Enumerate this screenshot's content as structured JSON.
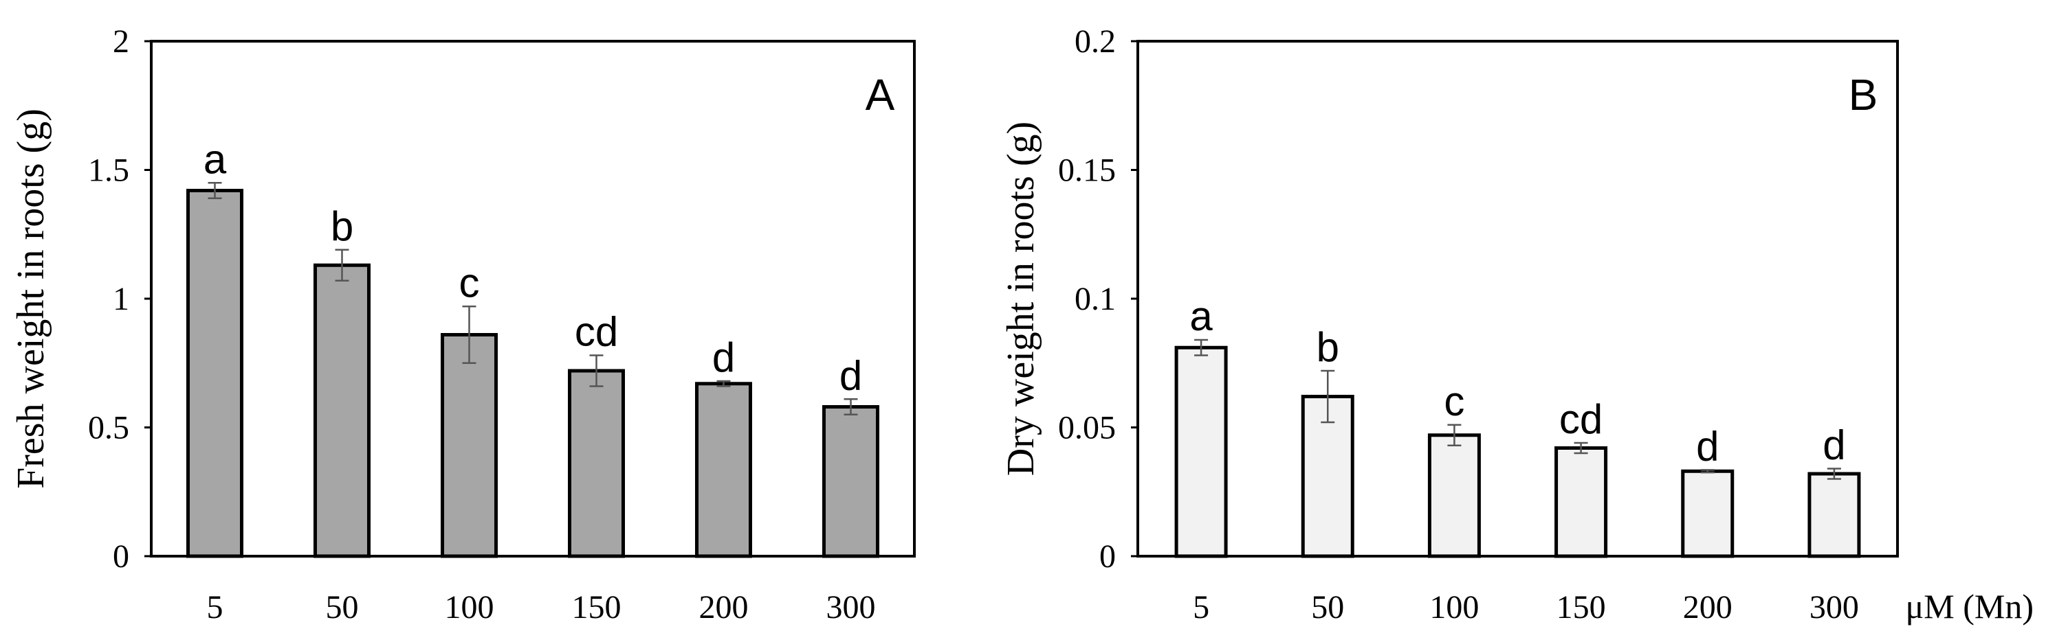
{
  "chart_data": [
    {
      "type": "bar",
      "panel_label": "A",
      "ylabel": "Fresh weight in roots (g)",
      "xlabel": "",
      "categories": [
        "5",
        "50",
        "100",
        "150",
        "200",
        "300"
      ],
      "values": [
        1.42,
        1.13,
        0.86,
        0.72,
        0.67,
        0.58
      ],
      "errors": [
        0.03,
        0.06,
        0.11,
        0.06,
        0.01,
        0.03
      ],
      "significance": [
        "a",
        "b",
        "c",
        "cd",
        "d",
        "d"
      ],
      "ylim": [
        0,
        2
      ],
      "yticks": [
        0,
        0.5,
        1,
        1.5,
        2
      ],
      "ytick_labels": [
        "0",
        "0.5",
        "1",
        "1.5",
        "2"
      ],
      "bar_color": "#a6a6a6",
      "grid": false
    },
    {
      "type": "bar",
      "panel_label": "B",
      "ylabel": "Dry weight in roots (g)",
      "xlabel": "μM (Mn)",
      "categories": [
        "5",
        "50",
        "100",
        "150",
        "200",
        "300"
      ],
      "values": [
        0.081,
        0.062,
        0.047,
        0.042,
        0.033,
        0.032
      ],
      "errors": [
        0.003,
        0.01,
        0.004,
        0.002,
        0.0005,
        0.002
      ],
      "significance": [
        "a",
        "b",
        "c",
        "cd",
        "d",
        "d"
      ],
      "ylim": [
        0,
        0.2
      ],
      "yticks": [
        0,
        0.05,
        0.1,
        0.15,
        0.2
      ],
      "ytick_labels": [
        "0",
        "0.05",
        "0.1",
        "0.15",
        "0.2"
      ],
      "bar_color": "#f2f2f2",
      "grid": false
    }
  ]
}
